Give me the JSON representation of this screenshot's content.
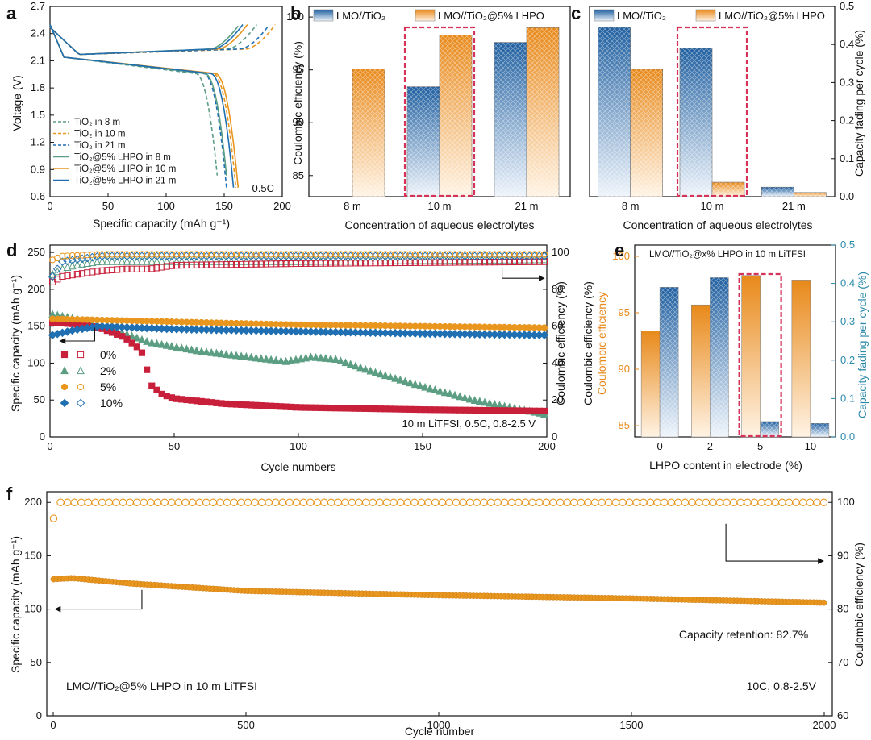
{
  "figure": {
    "title": ""
  },
  "panels": {
    "a": {
      "letter": "a",
      "xlabel": "Specific capacity (mAh g⁻¹)",
      "ylabel": "Voltage (V)",
      "xticks": [
        "0",
        "50",
        "100",
        "150",
        "200"
      ],
      "yticks": [
        "0.6",
        "0.9",
        "1.2",
        "1.5",
        "1.8",
        "2.1",
        "2.4",
        "2.7"
      ],
      "note": "0.5C"
    },
    "b": {
      "letter": "b",
      "xlabel": "Concentration of aqueous electrolytes",
      "ylabel": "Coulombic efficiency (%)",
      "yticks": [
        "85",
        "90",
        "95",
        "100"
      ],
      "legend": [
        "LMO//TiO₂",
        "LMO//TiO₂@5% LHPO"
      ]
    },
    "c": {
      "letter": "c",
      "xlabel": "Concentration of aqueous electrolytes",
      "ylabel": "Capacity fading per cycle (%)",
      "yticks": [
        "0.0",
        "0.1",
        "0.2",
        "0.3",
        "0.4",
        "0.5"
      ],
      "legend": [
        "LMO//TiO₂",
        "LMO//TiO₂@5% LHPO"
      ]
    },
    "d": {
      "letter": "d",
      "xlabel": "Cycle numbers",
      "ylabel": "Specific capacity (mAh g⁻¹)",
      "y2label": "Coulombic efficiency (%)",
      "xticks": [
        "0",
        "50",
        "100",
        "150",
        "200"
      ],
      "yticks": [
        "0",
        "50",
        "100",
        "150",
        "200",
        "250"
      ],
      "y2ticks": [
        "0",
        "20",
        "40",
        "60",
        "80",
        "100"
      ],
      "legend": [
        "0%",
        "2%",
        "5%",
        "10%"
      ],
      "note": "10 m LiTFSI, 0.5C, 0.8-2.5 V"
    },
    "e": {
      "letter": "e",
      "title": "LMO//TiO₂@x% LHPO in 10 m LiTFSI",
      "xlabel": "LHPO content in electrode (%)",
      "ylabel_black": "Coulombic efficiency (%)",
      "ylabel_orange": "Coulombic efficiency",
      "y2label": "Capacity fading per cycle (%)",
      "xticks": [
        "0",
        "2",
        "5",
        "10"
      ],
      "yticks": [
        "85",
        "90",
        "95",
        "100"
      ],
      "y2ticks": [
        "0.0",
        "0.1",
        "0.2",
        "0.3",
        "0.4",
        "0.5"
      ]
    },
    "f": {
      "letter": "f",
      "xlabel": "Cycle number",
      "ylabel": "Specific capacity (mAh g⁻¹)",
      "y2label": "Coulombic efficiency (%)",
      "xticks": [
        "0",
        "500",
        "1000",
        "1500",
        "2000"
      ],
      "yticks": [
        "0",
        "50",
        "100",
        "150",
        "200"
      ],
      "y2ticks": [
        "60",
        "70",
        "80",
        "90",
        "100"
      ],
      "note_retention": "Capacity retention: 82.7%",
      "note_cell": "LMO//TiO₂@5% LHPO in 10 m LiTFSI",
      "note_rate": "10C, 0.8-2.5V"
    }
  },
  "colors": {
    "blue": "#1f6fb2",
    "orange": "#e8961e",
    "green": "#5c9e83",
    "red": "#c8203b",
    "dark_red": "#d6335b",
    "teal": "#2a8aaa"
  },
  "chart_data": [
    {
      "panel": "a",
      "type": "line",
      "title": "",
      "xlabel": "Specific capacity (mAh g⁻¹)",
      "ylabel": "Voltage (V)",
      "xlim": [
        0,
        200
      ],
      "ylim": [
        0.6,
        2.7
      ],
      "series": [
        {
          "name": "TiO₂ in 8 m",
          "style": "dashed",
          "color": "#5c9e83",
          "charge_cap": 178,
          "discharge_cap": 145
        },
        {
          "name": "TiO₂ in 10 m",
          "style": "dashed",
          "color": "#e8961e",
          "charge_cap": 194,
          "discharge_cap": 160
        },
        {
          "name": "TiO₂ in 21 m",
          "style": "dashed",
          "color": "#1f6fb2",
          "charge_cap": 189,
          "discharge_cap": 152
        },
        {
          "name": "TiO₂@5% LHPO in 8 m",
          "style": "solid",
          "color": "#5c9e83",
          "charge_cap": 163,
          "discharge_cap": 153
        },
        {
          "name": "TiO₂@5% LHPO in 10 m",
          "style": "solid",
          "color": "#e8961e",
          "charge_cap": 170,
          "discharge_cap": 162
        },
        {
          "name": "TiO₂@5% LHPO in 21 m",
          "style": "solid",
          "color": "#1f6fb2",
          "charge_cap": 166,
          "discharge_cap": 158
        }
      ]
    },
    {
      "panel": "b",
      "type": "bar",
      "title": "",
      "categories": [
        "8 m",
        "10 m",
        "21 m"
      ],
      "ylim": [
        83,
        101
      ],
      "xlabel": "Concentration of aqueous electrolytes",
      "ylabel": "Coulombic efficiency (%)",
      "series": [
        {
          "name": "LMO//TiO₂",
          "values": [
            null,
            93.4,
            97.6
          ]
        },
        {
          "name": "LMO//TiO₂@5% LHPO",
          "values": [
            95.1,
            98.3,
            99.0
          ]
        }
      ],
      "highlight": "10 m"
    },
    {
      "panel": "c",
      "type": "bar",
      "title": "",
      "categories": [
        "8 m",
        "10 m",
        "21 m"
      ],
      "ylim": [
        0,
        0.5
      ],
      "xlabel": "Concentration of aqueous electrolytes",
      "ylabel": "Capacity fading per cycle (%)",
      "series": [
        {
          "name": "LMO//TiO₂",
          "values": [
            0.445,
            0.39,
            0.025
          ]
        },
        {
          "name": "LMO//TiO₂@5% LHPO",
          "values": [
            0.335,
            0.038,
            0.011
          ]
        }
      ],
      "highlight": "10 m"
    },
    {
      "panel": "d",
      "type": "scatter",
      "title": "",
      "xlabel": "Cycle numbers",
      "ylabel": "Specific capacity (mAh g⁻¹)",
      "y2label": "Coulombic efficiency (%)",
      "xlim": [
        0,
        200
      ],
      "ylim": [
        0,
        260
      ],
      "y2lim": [
        0,
        104
      ],
      "capacity": [
        {
          "name": "0%",
          "x": [
            1,
            10,
            20,
            30,
            35,
            38,
            40,
            45,
            50,
            70,
            100,
            150,
            200
          ],
          "y": [
            155,
            153,
            148,
            135,
            122,
            110,
            72,
            58,
            52,
            45,
            40,
            37,
            35
          ]
        },
        {
          "name": "2%",
          "x": [
            1,
            10,
            20,
            30,
            40,
            50,
            60,
            80,
            95,
            105,
            115,
            130,
            150,
            170,
            200
          ],
          "y": [
            166,
            160,
            152,
            140,
            128,
            122,
            116,
            108,
            102,
            108,
            105,
            88,
            68,
            50,
            30
          ]
        },
        {
          "name": "5%",
          "x": [
            1,
            50,
            100,
            150,
            200
          ],
          "y": [
            160,
            156,
            152,
            150,
            148
          ]
        },
        {
          "name": "10%",
          "x": [
            1,
            10,
            20,
            50,
            100,
            150,
            200
          ],
          "y": [
            138,
            145,
            150,
            146,
            143,
            140,
            138
          ]
        }
      ],
      "ce": [
        {
          "name": "0%",
          "x": [
            1,
            5,
            10,
            20,
            30,
            40,
            50,
            100,
            200
          ],
          "y": [
            84,
            87,
            88,
            90,
            91,
            91,
            93,
            94,
            95
          ]
        },
        {
          "name": "2%",
          "x": [
            1,
            5,
            10,
            20,
            50,
            100,
            200
          ],
          "y": [
            88,
            91,
            93,
            95,
            95,
            95,
            96
          ]
        },
        {
          "name": "5%",
          "x": [
            1,
            5,
            20,
            100,
            200
          ],
          "y": [
            96,
            98,
            99,
            99,
            99
          ]
        },
        {
          "name": "10%",
          "x": [
            1,
            5,
            20,
            100,
            200
          ],
          "y": [
            87,
            95,
            98,
            98,
            98
          ]
        }
      ]
    },
    {
      "panel": "e",
      "type": "bar",
      "title": "LMO//TiO₂@x% LHPO in 10 m LiTFSI",
      "categories": [
        "0",
        "2",
        "5",
        "10"
      ],
      "xlabel": "LHPO content in electrode (%)",
      "ylim": [
        84,
        101
      ],
      "y2lim": [
        0,
        0.5
      ],
      "series": [
        {
          "name": "Coulombic efficiency (%)",
          "axis": "left",
          "values": [
            93.4,
            95.7,
            98.3,
            97.9
          ]
        },
        {
          "name": "Capacity fading per cycle (%)",
          "axis": "right",
          "values": [
            0.39,
            0.415,
            0.04,
            0.035
          ]
        }
      ],
      "highlight": "5"
    },
    {
      "panel": "f",
      "type": "scatter",
      "title": "",
      "xlabel": "Cycle number",
      "ylabel": "Specific capacity (mAh g⁻¹)",
      "y2label": "Coulombic efficiency (%)",
      "xlim": [
        0,
        2000
      ],
      "ylim": [
        0,
        210
      ],
      "y2lim": [
        60,
        102
      ],
      "capacity": {
        "x": [
          1,
          50,
          200,
          500,
          1000,
          1500,
          2000
        ],
        "y": [
          128,
          129,
          124,
          117,
          113,
          110,
          106
        ]
      },
      "ce": {
        "x": [
          1,
          10,
          50,
          500,
          1000,
          1500,
          2000
        ],
        "y": [
          97,
          100,
          100,
          100,
          100,
          100,
          100
        ]
      },
      "capacity_retention_percent": 82.7
    }
  ]
}
